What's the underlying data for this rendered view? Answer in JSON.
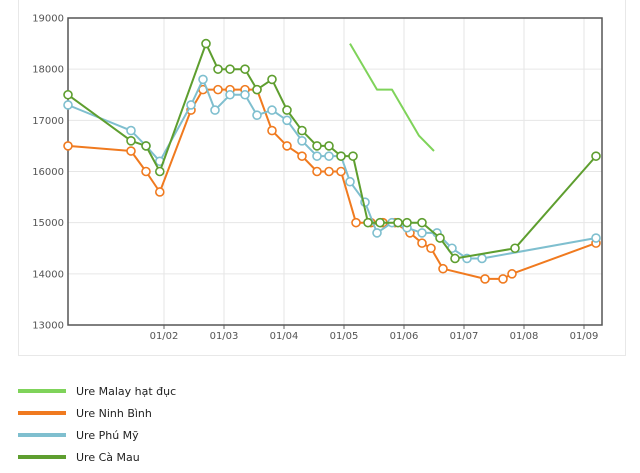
{
  "chart_data": {
    "type": "line",
    "title": "",
    "xlabel": "",
    "ylabel": "",
    "ylim": [
      13000,
      19000
    ],
    "y_ticks": [
      "13000",
      "14000",
      "15000",
      "16000",
      "17000",
      "18000",
      "19000"
    ],
    "x_tick_labels": [
      "01/02",
      "01/03",
      "01/04",
      "01/05",
      "01/06",
      "01/07",
      "01/08",
      "01/09"
    ],
    "x_tick_months": [
      1.0,
      2.0,
      3.0,
      4.0,
      5.0,
      6.0,
      7.0,
      8.0
    ],
    "x_range_months": [
      -0.6,
      8.3
    ],
    "series": [
      {
        "name": "Ure Malay hạt đục",
        "color": "#7fd35a",
        "markers": false,
        "x": [
          4.1,
          4.55,
          4.8,
          5.25,
          5.5
        ],
        "y": [
          18500,
          17600,
          17600,
          16700,
          16400
        ]
      },
      {
        "name": "Ure Ninh Bình",
        "color": "#f07a1f",
        "markers": true,
        "x": [
          -0.6,
          0.45,
          0.7,
          0.93,
          1.45,
          1.65,
          1.9,
          2.1,
          2.35,
          2.55,
          2.8,
          3.05,
          3.3,
          3.55,
          3.75,
          3.95,
          4.2,
          4.45,
          4.65,
          4.85,
          5.1,
          5.3,
          5.45,
          5.65,
          6.35,
          6.65,
          6.8,
          8.2
        ],
        "y": [
          16500,
          16400,
          16000,
          15600,
          17200,
          17600,
          17600,
          17600,
          17600,
          17600,
          16800,
          16500,
          16300,
          16000,
          16000,
          16000,
          15000,
          15000,
          15000,
          15000,
          14800,
          14600,
          14500,
          14100,
          13900,
          13900,
          14000,
          14600
        ]
      },
      {
        "name": "Ure Phú Mỹ",
        "color": "#7fbfcf",
        "markers": true,
        "x": [
          -0.6,
          0.45,
          0.7,
          0.93,
          1.45,
          1.65,
          1.85,
          2.1,
          2.35,
          2.55,
          2.8,
          3.05,
          3.3,
          3.55,
          3.75,
          3.95,
          4.1,
          4.35,
          4.55,
          4.8,
          5.05,
          5.3,
          5.55,
          5.8,
          6.05,
          6.3,
          8.2
        ],
        "y": [
          17300,
          16800,
          16500,
          16200,
          17300,
          17800,
          17200,
          17500,
          17500,
          17100,
          17200,
          17000,
          16600,
          16300,
          16300,
          16300,
          15800,
          15400,
          14800,
          15000,
          14900,
          14800,
          14800,
          14500,
          14300,
          14300,
          14700
        ]
      },
      {
        "name": "Ure Cà Mau",
        "color": "#5e9e2f",
        "markers": true,
        "x": [
          -0.6,
          0.45,
          0.7,
          0.93,
          1.7,
          1.9,
          2.1,
          2.35,
          2.55,
          2.8,
          3.05,
          3.3,
          3.55,
          3.75,
          3.95,
          4.15,
          4.4,
          4.6,
          4.9,
          5.05,
          5.3,
          5.6,
          5.85,
          6.85,
          8.2
        ],
        "y": [
          17500,
          16600,
          16500,
          16000,
          18500,
          18000,
          18000,
          18000,
          17600,
          17800,
          17200,
          16800,
          16500,
          16500,
          16300,
          16300,
          15000,
          15000,
          15000,
          15000,
          15000,
          14700,
          14300,
          14500,
          16300
        ]
      }
    ]
  },
  "legend": [
    {
      "label": "Ure Malay hạt đục",
      "color": "#7fd35a"
    },
    {
      "label": "Ure Ninh Bình",
      "color": "#f07a1f"
    },
    {
      "label": "Ure Phú Mỹ",
      "color": "#7fbfcf"
    },
    {
      "label": "Ure Cà Mau",
      "color": "#5e9e2f"
    }
  ]
}
